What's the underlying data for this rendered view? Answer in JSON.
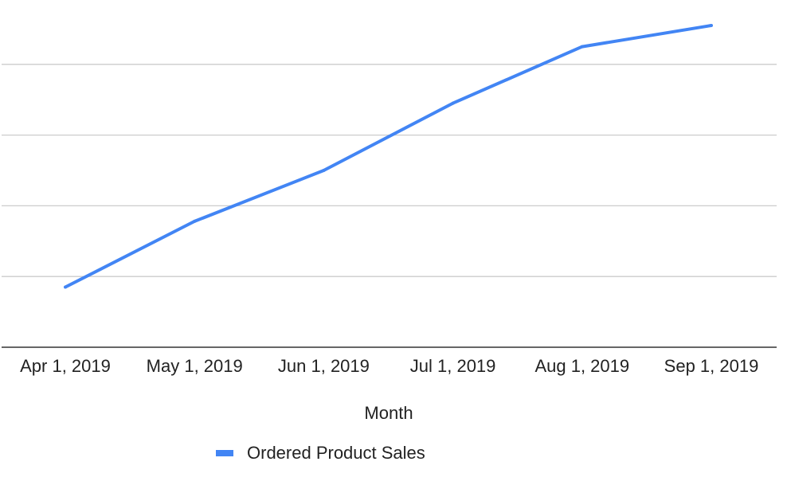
{
  "chart_data": {
    "type": "line",
    "title": "",
    "xlabel": "Month",
    "ylabel": "",
    "categories": [
      "Apr 1, 2019",
      "May 1, 2019",
      "Jun 1, 2019",
      "Jul 1, 2019",
      "Aug 1, 2019",
      "Sep 1, 2019"
    ],
    "series": [
      {
        "name": "Ordered Product Sales",
        "color": "#4285f4",
        "values": [
          0.85,
          1.78,
          2.5,
          3.45,
          4.25,
          4.55
        ]
      }
    ],
    "ylim": [
      0,
      5
    ],
    "grid": true,
    "y_tick_labels_visible": false,
    "legend": "bottom-center"
  }
}
